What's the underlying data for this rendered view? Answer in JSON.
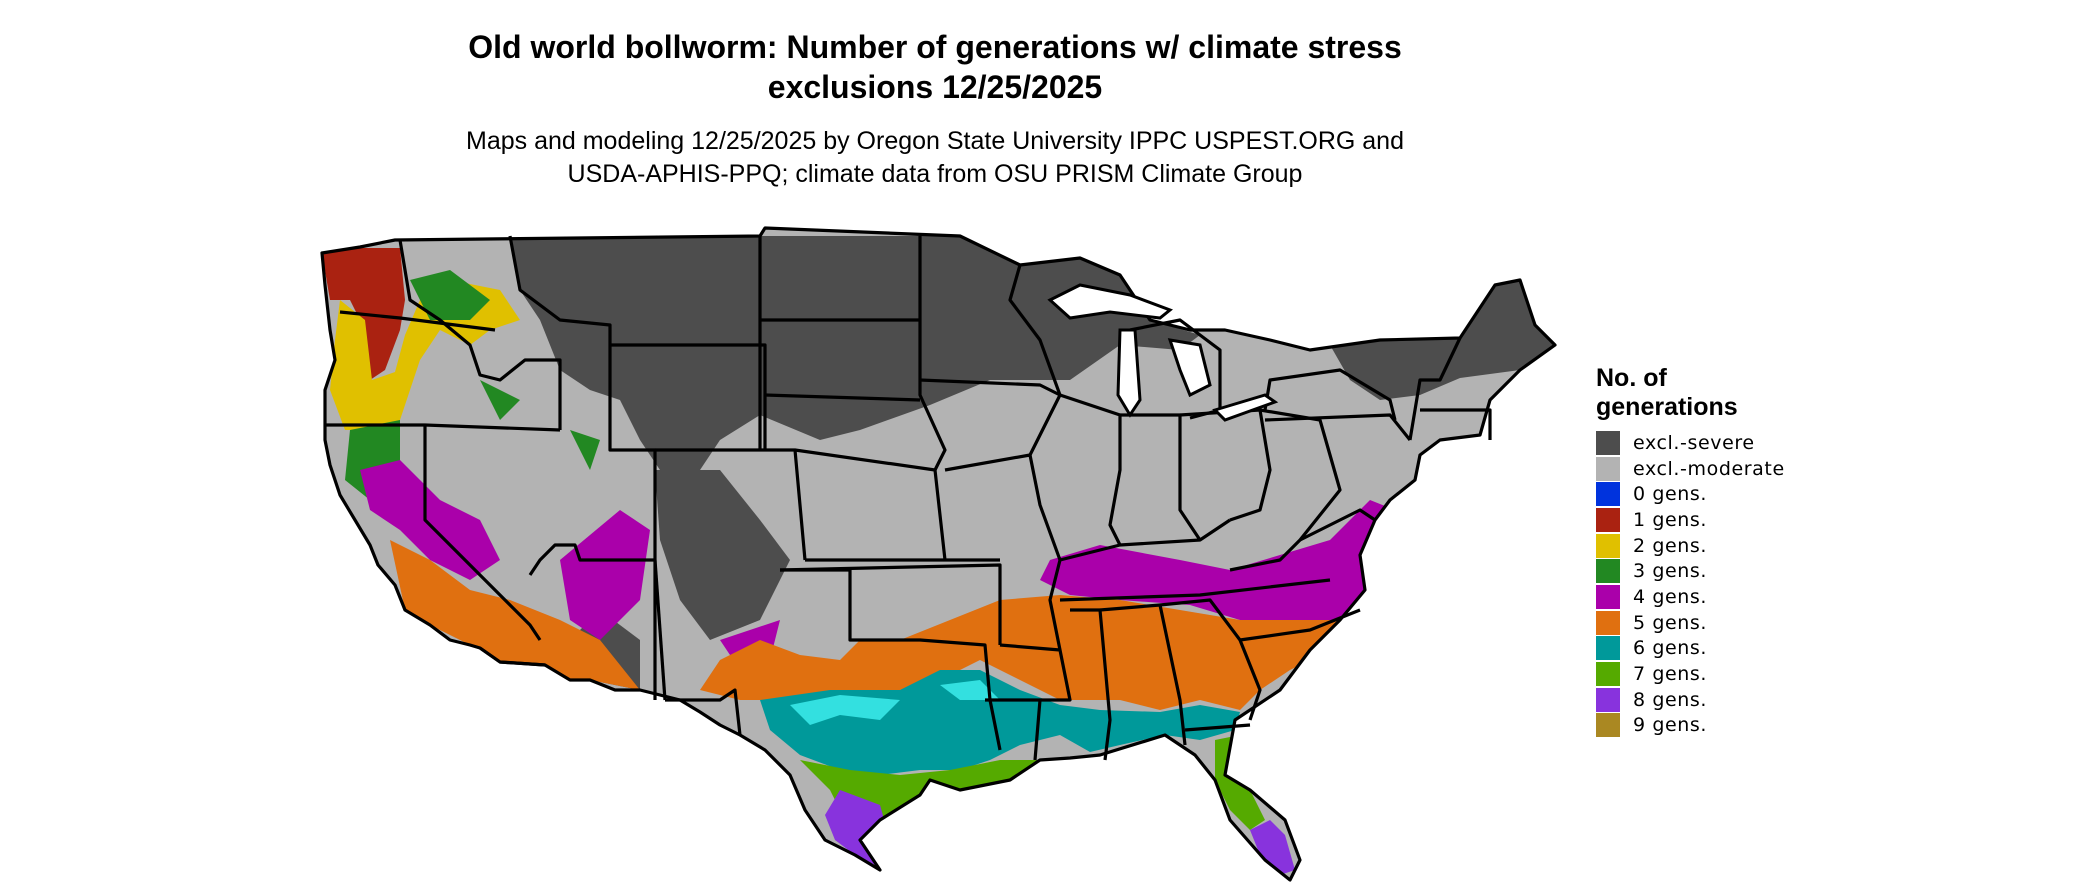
{
  "title": {
    "line1": "Old world bollworm: Number of generations w/ climate stress",
    "line2": "exclusions 12/25/2025"
  },
  "subtitle": {
    "line1": "Maps and modeling 12/25/2025 by Oregon State University IPPC USPEST.ORG and",
    "line2": "USDA-APHIS-PPQ; climate data from OSU PRISM Climate Group"
  },
  "legend": {
    "title_line1": "No. of",
    "title_line2": "generations",
    "items": [
      {
        "label": "excl.-severe",
        "color": "#4d4d4d"
      },
      {
        "label": "excl.-moderate",
        "color": "#b3b3b3"
      },
      {
        "label": "0 gens.",
        "color": "#0033dd"
      },
      {
        "label": "1 gens.",
        "color": "#aa2211"
      },
      {
        "label": "2 gens.",
        "color": "#e0c000"
      },
      {
        "label": "3 gens.",
        "color": "#228822"
      },
      {
        "label": "4 gens.",
        "color": "#aa00aa"
      },
      {
        "label": "5 gens.",
        "color": "#e07010"
      },
      {
        "label": "6 gens.",
        "color": "#00999a"
      },
      {
        "label": "7 gens.",
        "color": "#55aa00"
      },
      {
        "label": "8 gens.",
        "color": "#8833dd"
      },
      {
        "label": "9 gens.",
        "color": "#aa8822"
      }
    ]
  },
  "map_colors": {
    "border": "#000000",
    "cyan_highlight": "#33e0e0",
    "lime_highlight": "#aaee33"
  }
}
